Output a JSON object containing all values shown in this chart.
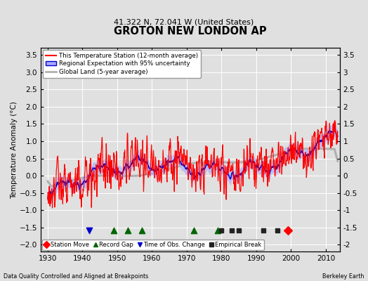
{
  "title": "GROTON NEW LONDON AP",
  "subtitle": "41.322 N, 72.041 W (United States)",
  "ylabel": "Temperature Anomaly (°C)",
  "footer_left": "Data Quality Controlled and Aligned at Breakpoints",
  "footer_right": "Berkeley Earth",
  "ylim": [
    -2.2,
    3.7
  ],
  "yticks": [
    -2,
    -1.5,
    -1,
    -0.5,
    0,
    0.5,
    1,
    1.5,
    2,
    2.5,
    3,
    3.5
  ],
  "xlim": [
    1928,
    2014
  ],
  "xticks": [
    1930,
    1940,
    1950,
    1960,
    1970,
    1980,
    1990,
    2000,
    2010
  ],
  "bg_color": "#e0e0e0",
  "plot_bg_color": "#e0e0e0",
  "grid_color": "#ffffff",
  "station_color": "#ff0000",
  "regional_color": "#0000cc",
  "regional_fill_color": "#aaaaff",
  "global_color": "#b0b0b0",
  "legend_labels": [
    "This Temperature Station (12-month average)",
    "Regional Expectation with 95% uncertainty",
    "Global Land (5-year average)"
  ],
  "marker_events": {
    "station_move": {
      "years": [
        1999
      ],
      "color": "#ff0000",
      "marker": "D",
      "size": 6
    },
    "record_gap": {
      "years": [
        1949,
        1953,
        1957,
        1972,
        1979
      ],
      "color": "#006600",
      "marker": "^",
      "size": 6
    },
    "time_obs_change": {
      "years": [
        1942
      ],
      "color": "#0000cc",
      "marker": "v",
      "size": 6
    },
    "empirical_break": {
      "years": [
        1980,
        1983,
        1985,
        1992,
        1996
      ],
      "color": "#222222",
      "marker": "s",
      "size": 5
    }
  },
  "bottom_legend_labels": [
    "Station Move",
    "Record Gap",
    "Time of Obs. Change",
    "Empirical Break"
  ]
}
